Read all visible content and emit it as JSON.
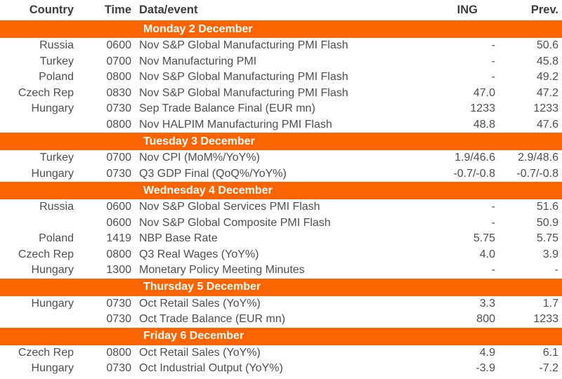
{
  "colors": {
    "band_background": "#FB6400",
    "band_text": "#FFFFFF",
    "header_text": "#3D3D3D",
    "body_text": "#4F4F4F",
    "page_background": "#FFFFFF"
  },
  "table": {
    "columns": [
      "Country",
      "Time",
      "Data/event",
      "ING",
      "Prev."
    ],
    "sections": [
      {
        "day": "Monday 2 December",
        "rows": [
          {
            "country": "Russia",
            "time": "0600",
            "event": "Nov S&P Global Manufacturing PMI Flash",
            "ing": "-",
            "prev": "50.6"
          },
          {
            "country": "Turkey",
            "time": "0700",
            "event": "Nov Manufacturing PMI",
            "ing": "-",
            "prev": "45.8"
          },
          {
            "country": "Poland",
            "time": "0800",
            "event": "Nov S&P Global Manufacturing PMI Flash",
            "ing": "-",
            "prev": "49.2"
          },
          {
            "country": "Czech Rep",
            "time": "0830",
            "event": "Nov S&P Global Manufacturing PMI Flash",
            "ing": "47.0",
            "prev": "47.2"
          },
          {
            "country": "Hungary",
            "time": "0730",
            "event": "Sep Trade Balance Final (EUR mn)",
            "ing": "1233",
            "prev": "1233"
          },
          {
            "country": "",
            "time": "0800",
            "event": "Nov HALPIM Manufacturing PMI Flash",
            "ing": "48.8",
            "prev": "47.6"
          }
        ]
      },
      {
        "day": "Tuesday 3 December",
        "rows": [
          {
            "country": "Turkey",
            "time": "0700",
            "event": "Nov CPI (MoM%/YoY%)",
            "ing": "1.9/46.6",
            "prev": "2.9/48.6"
          },
          {
            "country": "Hungary",
            "time": "0730",
            "event": "Q3 GDP Final (QoQ%/YoY%)",
            "ing": "-0.7/-0.8",
            "prev": "-0.7/-0.8"
          }
        ]
      },
      {
        "day": "Wednesday 4 December",
        "rows": [
          {
            "country": "Russia",
            "time": "0600",
            "event": "Nov S&P Global Services PMI Flash",
            "ing": "-",
            "prev": "51.6"
          },
          {
            "country": "",
            "time": "0600",
            "event": "Nov S&P Global Composite PMI Flash",
            "ing": "-",
            "prev": "50.9"
          },
          {
            "country": "Poland",
            "time": "1419",
            "event": "NBP Base Rate",
            "ing": "5.75",
            "prev": "5.75"
          },
          {
            "country": "Czech Rep",
            "time": "0800",
            "event": "Q3 Real Wages (YoY%)",
            "ing": "4.0",
            "prev": "3.9"
          },
          {
            "country": "Hungary",
            "time": "1300",
            "event": "Monetary Policy Meeting Minutes",
            "ing": "-",
            "prev": "-"
          }
        ]
      },
      {
        "day": "Thursday 5 December",
        "rows": [
          {
            "country": "Hungary",
            "time": "0730",
            "event": "Oct Retail Sales (YoY%)",
            "ing": "3.3",
            "prev": "1.7"
          },
          {
            "country": "",
            "time": "0730",
            "event": "Oct Trade Balance (EUR mn)",
            "ing": "800",
            "prev": "1233"
          }
        ]
      },
      {
        "day": "Friday 6 December",
        "rows": [
          {
            "country": "Czech Rep",
            "time": "0800",
            "event": "Oct Retail Sales (YoY%)",
            "ing": "4.9",
            "prev": "6.1"
          },
          {
            "country": "Hungary",
            "time": "0730",
            "event": "Oct Industrial Output (YoY%)",
            "ing": "-3.9",
            "prev": "-7.2"
          }
        ]
      }
    ]
  }
}
